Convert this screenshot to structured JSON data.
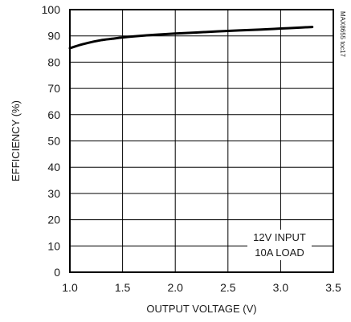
{
  "chart_data": {
    "type": "line",
    "title": "",
    "xlabel": "OUTPUT VOLTAGE (V)",
    "ylabel": "EFFICIENCY (%)",
    "xlim": [
      1.0,
      3.5
    ],
    "ylim": [
      0,
      100
    ],
    "x_ticks": [
      "1.0",
      "1.5",
      "2.0",
      "2.5",
      "3.0",
      "3.5"
    ],
    "y_ticks": [
      "0",
      "10",
      "20",
      "30",
      "40",
      "50",
      "60",
      "70",
      "80",
      "90",
      "100"
    ],
    "grid": true,
    "series": [
      {
        "name": "",
        "x": [
          1.0,
          1.1,
          1.2,
          1.3,
          1.4,
          1.5,
          1.6,
          1.8,
          2.0,
          2.2,
          2.5,
          2.8,
          3.0,
          3.2,
          3.3
        ],
        "y": [
          85.3,
          86.6,
          87.6,
          88.4,
          88.9,
          89.4,
          89.8,
          90.4,
          90.9,
          91.3,
          91.9,
          92.4,
          92.8,
          93.2,
          93.4
        ]
      }
    ],
    "annotations": [
      "12V INPUT",
      "10A LOAD"
    ],
    "doc_id": "MAX8655 toc17"
  }
}
